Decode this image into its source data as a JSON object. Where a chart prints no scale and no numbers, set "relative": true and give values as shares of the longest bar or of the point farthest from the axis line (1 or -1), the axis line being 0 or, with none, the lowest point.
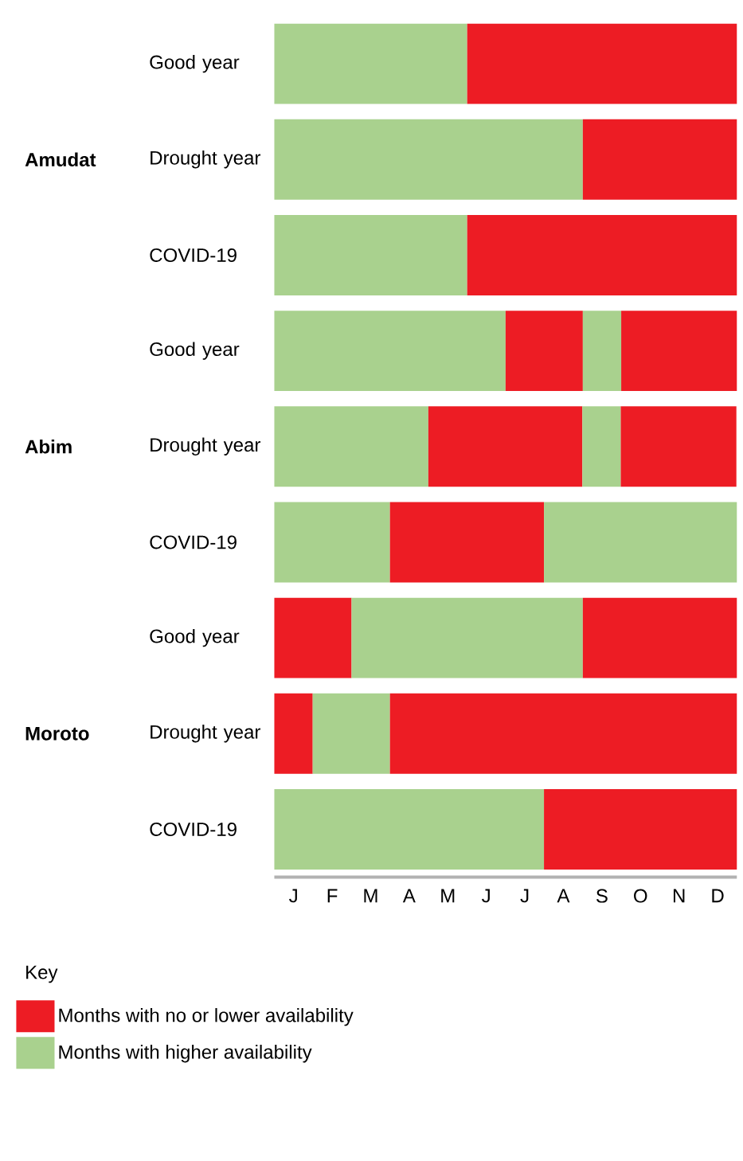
{
  "chart_data": {
    "type": "bar",
    "orientation": "horizontal",
    "stacked": true,
    "categories": [
      "Good year",
      "Drought year",
      "COVID-19",
      "Good year",
      "Drought year",
      "COVID-19",
      "Good year",
      "Drought year",
      "COVID-19"
    ],
    "y2_categories": [
      null,
      "Amudat",
      null,
      null,
      "Abim",
      null,
      null,
      "Moroto",
      null
    ],
    "series": [
      {
        "name": "Months with higher availability",
        "color": "#a9d18e",
        "values": [
          0.417,
          0.667,
          0.417,
          0.5,
          0.333,
          0.25,
          0,
          0,
          0.583
        ]
      },
      {
        "name": "Months with no or lower availability",
        "color": "#ed1c24",
        "values": [
          0.583,
          0.333,
          0.583,
          0.167,
          0.333,
          0.333,
          0.167,
          0.083,
          0.417
        ]
      },
      {
        "color": "#a9d18e",
        "values": [
          null,
          null,
          null,
          0.083,
          0.083,
          0.417,
          0.5,
          0.167,
          null
        ]
      },
      {
        "color": "#ed1c24",
        "values": [
          null,
          null,
          null,
          0.25,
          0.25,
          null,
          0.333,
          0.75,
          null
        ]
      }
    ],
    "relative": true,
    "annotations": [
      "J",
      "F",
      "M",
      "A",
      "M",
      "J",
      "J",
      "A",
      "S",
      "O",
      "N",
      "D"
    ],
    "legend_title": "Key",
    "legend": "bottom left"
  }
}
